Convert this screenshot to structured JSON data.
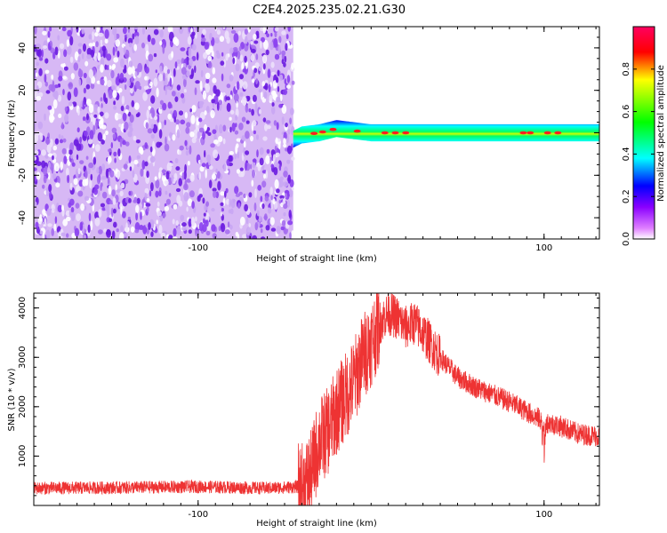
{
  "title": "C2E4.2025.235.02.21.G30",
  "colors": {
    "line": "#ee3333",
    "frame": "#000000",
    "noise_light": "#d7b8f5",
    "noise_dark": "#6a1be0"
  },
  "chart_data": [
    {
      "type": "heatmap",
      "xlabel": "Height of straight line (km)",
      "ylabel": "Frequency (Hz)",
      "xlim": [
        -195,
        132
      ],
      "ylim": [
        -50,
        50
      ],
      "xticks": [
        -100,
        100
      ],
      "yticks": [
        -40,
        -20,
        0,
        20,
        40
      ],
      "colorbar": {
        "label": "Normalized spectral amplitude",
        "range": [
          0,
          1
        ],
        "ticks": [
          "0.0",
          "0.2",
          "0.4",
          "0.6",
          "0.8"
        ]
      },
      "noise_region_xlim": [
        -195,
        -45
      ],
      "signal_band": {
        "x_range": [
          -45,
          132
        ],
        "half_width_hz": 4,
        "center_hz": [
          [
            -45,
            -3
          ],
          [
            -40,
            -1
          ],
          [
            -30,
            0
          ],
          [
            -20,
            2
          ],
          [
            -10,
            1
          ],
          [
            0,
            0
          ],
          [
            50,
            0
          ],
          [
            100,
            0
          ],
          [
            132,
            0
          ]
        ]
      }
    },
    {
      "type": "line",
      "xlabel": "Height of straight line (km)",
      "ylabel": "SNR (10 * v/v)",
      "xlim": [
        -195,
        132
      ],
      "ylim": [
        0,
        4300
      ],
      "xticks": [
        -100,
        100
      ],
      "yticks": [
        1000,
        2000,
        3000,
        4000
      ],
      "series": [
        {
          "x": [
            -195,
            -150,
            -100,
            -60,
            -40,
            -35,
            -30,
            -25,
            -20,
            -15,
            -10,
            -5,
            0,
            5,
            10,
            15,
            20,
            25,
            30,
            40,
            50,
            60,
            70,
            80,
            90,
            100,
            110,
            120,
            132
          ],
          "y": [
            350,
            360,
            380,
            350,
            380,
            600,
            1300,
            1500,
            1900,
            2200,
            2500,
            3000,
            3300,
            3700,
            3900,
            3800,
            3600,
            3700,
            3500,
            3000,
            2600,
            2400,
            2250,
            2100,
            1900,
            1700,
            1600,
            1450,
            1400
          ]
        }
      ]
    }
  ]
}
